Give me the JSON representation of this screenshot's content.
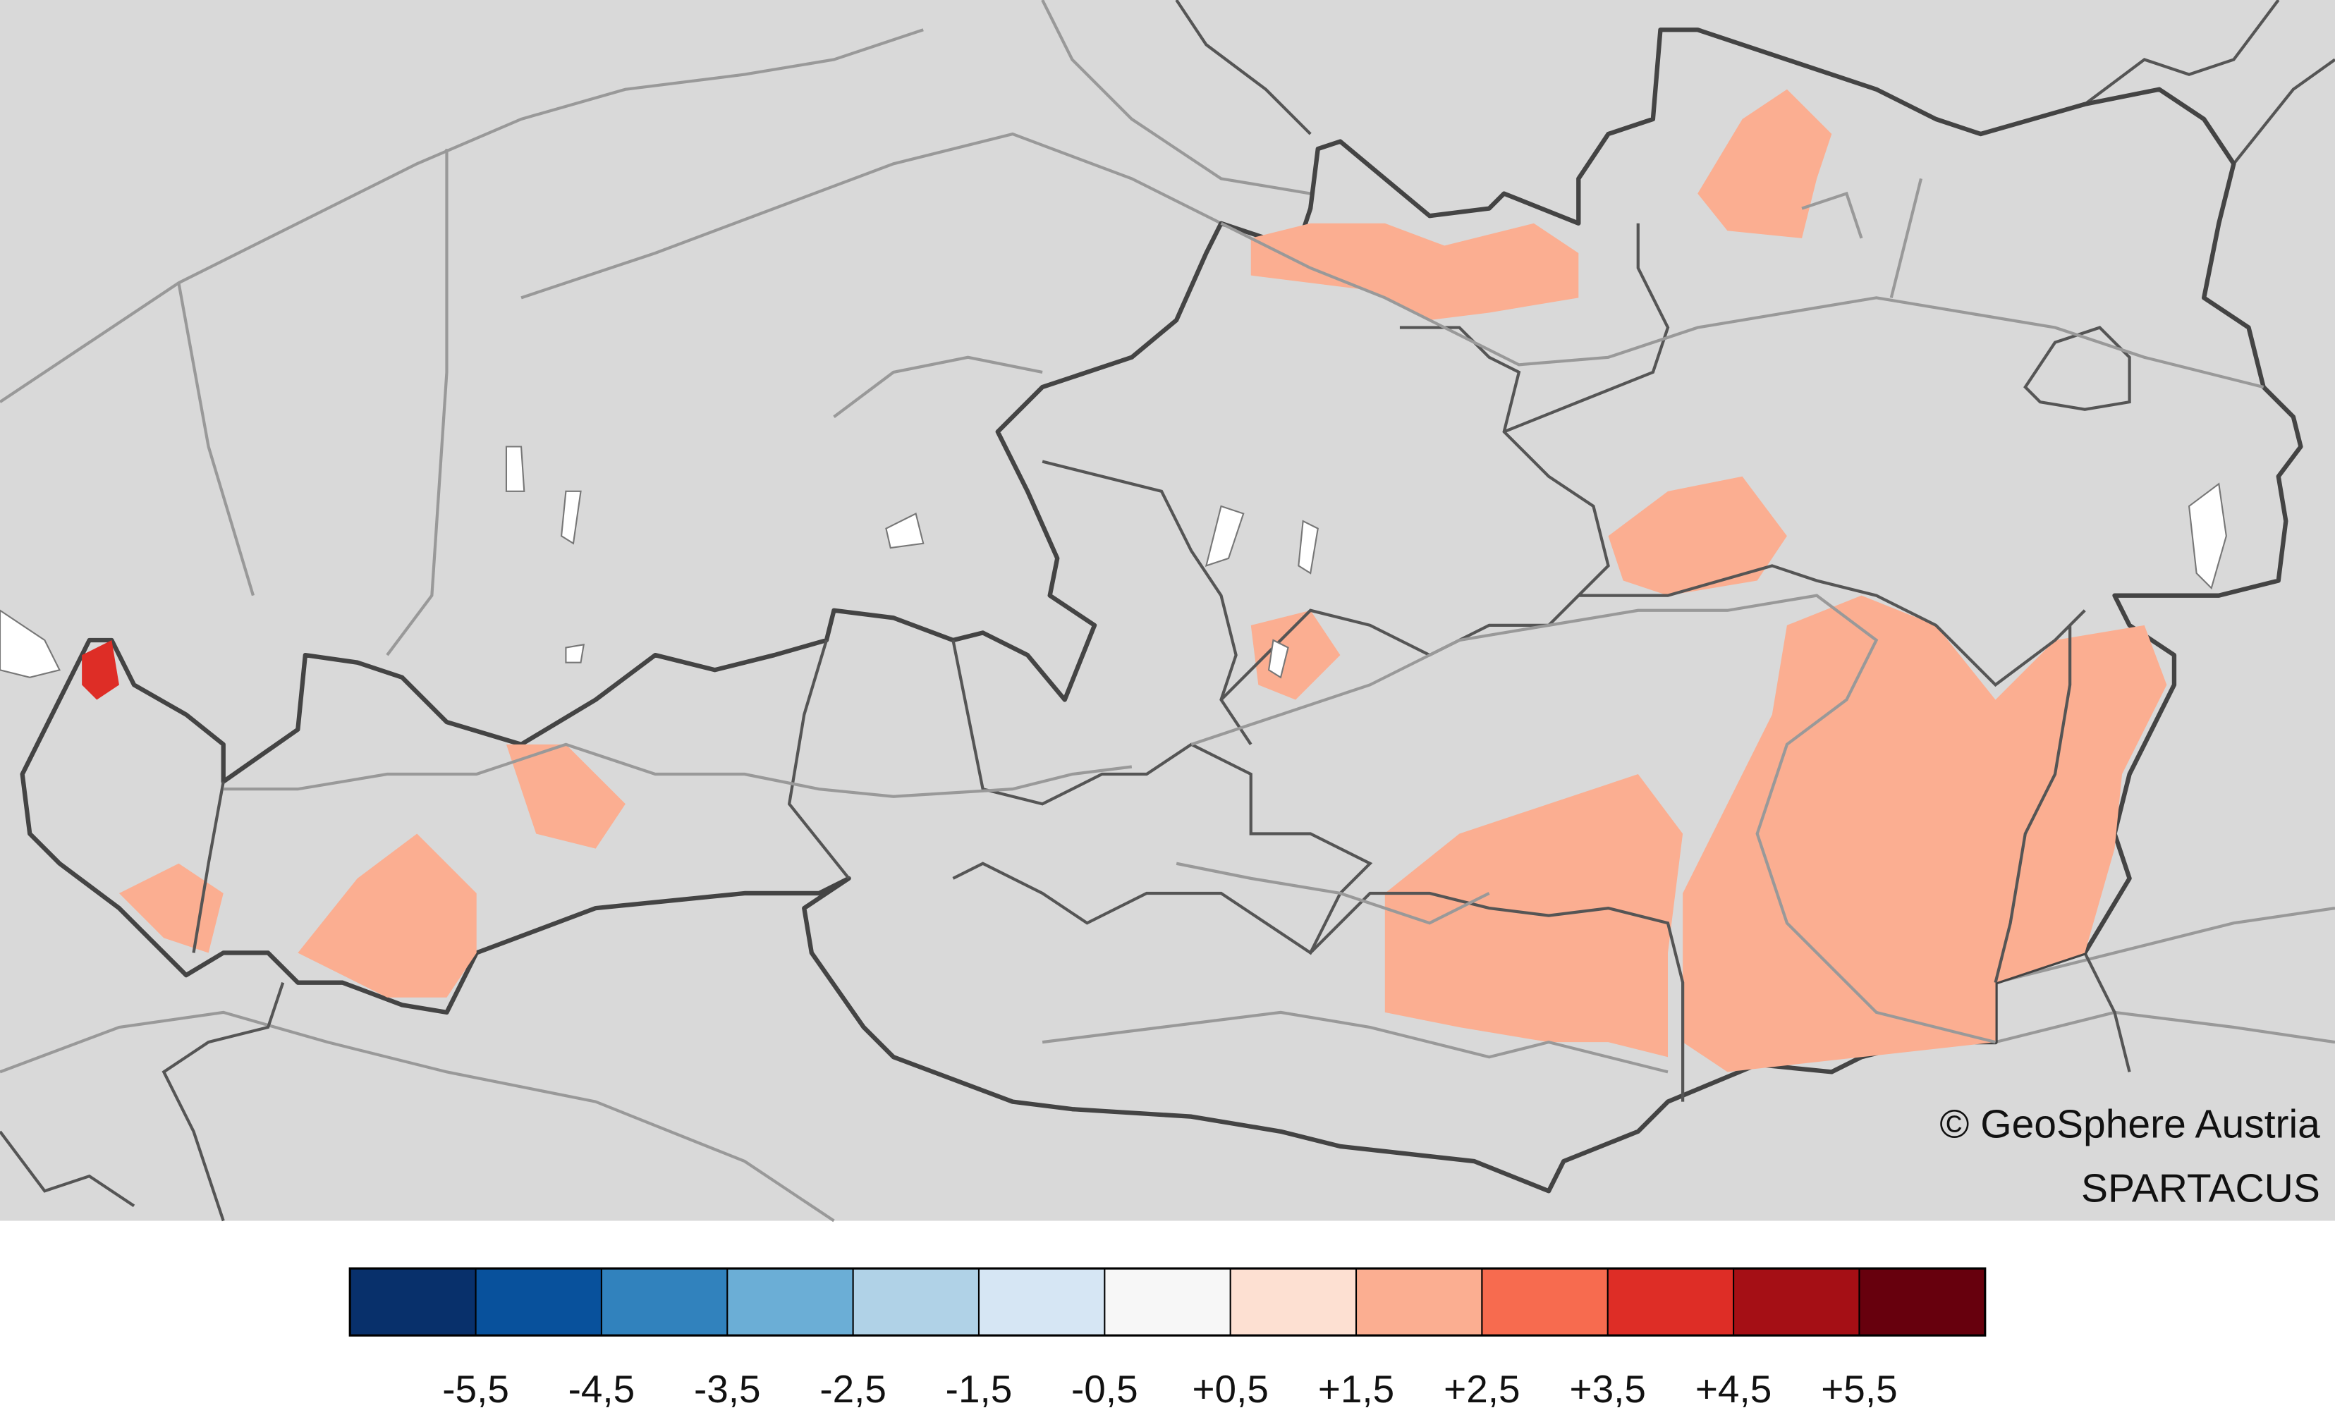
{
  "map": {
    "attribution": [
      "© GeoSphere Austria",
      "SPARTACUS"
    ],
    "legend": {
      "colors": [
        "#08306b",
        "#08519c",
        "#3182bd",
        "#6baed6",
        "#b0d2e7",
        "#d6e6f4",
        "#f7f7f7",
        "#fde0d2",
        "#fbae91",
        "#f76b4f",
        "#de2d26",
        "#a50f15",
        "#67000d"
      ],
      "ticks": [
        "-5,5",
        "-4,5",
        "-3,5",
        "-2,5",
        "-1,5",
        "-0,5",
        "+0,5",
        "+1,5",
        "+2,5",
        "+3,5",
        "+4,5",
        "+5,5"
      ]
    }
  }
}
